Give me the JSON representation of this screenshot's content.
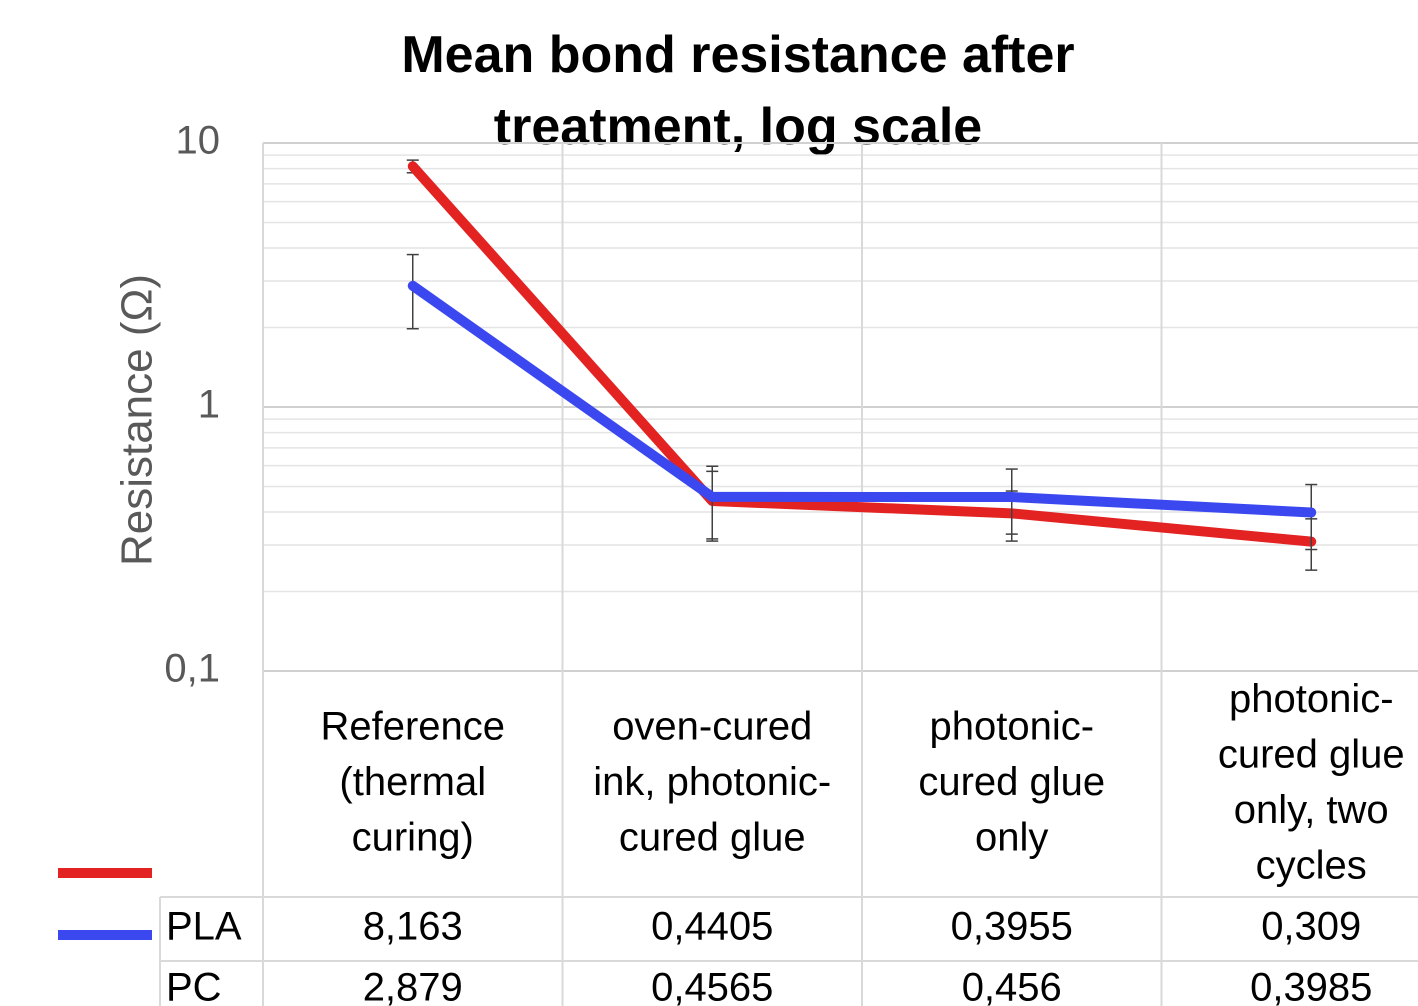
{
  "chart_data": {
    "type": "line",
    "title": "Mean bond resistance after treatment, log scale",
    "y_label": "Resistance (Ω)",
    "categories": [
      "Reference (thermal curing)",
      "oven-cured ink, photonic-cured glue",
      "photonic-cured glue only",
      "photonic-cured glue only, two cycles"
    ],
    "series": [
      {
        "name": "PLA",
        "color": "#e32222",
        "values": [
          8.163,
          0.4405,
          0.3955,
          0.309
        ],
        "value_labels": [
          "8,163",
          "0,4405",
          "0,3955",
          "0,309"
        ],
        "errors": [
          0.45,
          0.13,
          0.085,
          0.068
        ]
      },
      {
        "name": "PC",
        "color": "#3b48f0",
        "values": [
          2.879,
          0.4565,
          0.456,
          0.3985
        ],
        "value_labels": [
          "2,879",
          "0,4565",
          "0,456",
          "0,3985"
        ],
        "errors": [
          0.9,
          0.14,
          0.126,
          0.11
        ]
      }
    ],
    "log_scale": true,
    "ylim": [
      0.1,
      10
    ],
    "yticks": [
      {
        "value": 0.1,
        "label": "0,1"
      },
      1,
      10
    ],
    "minor_grid": [
      0.2,
      0.3,
      0.4,
      0.5,
      0.6,
      0.7,
      0.8,
      0.9,
      2,
      3,
      4,
      5,
      6,
      7,
      8,
      9
    ],
    "grid": true,
    "legend": "data-table"
  }
}
